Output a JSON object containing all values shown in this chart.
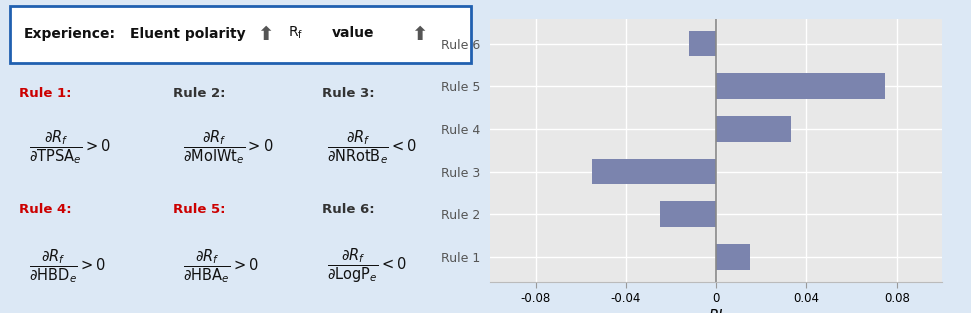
{
  "bar_labels": [
    "Rule 1",
    "Rule 2",
    "Rule 3",
    "Rule 4",
    "Rule 5",
    "Rule 6"
  ],
  "bar_values": [
    0.015,
    -0.025,
    -0.055,
    0.033,
    0.075,
    -0.012
  ],
  "bar_color": "#7b84ae",
  "xlim": [
    -0.1,
    0.1
  ],
  "xticks": [
    -0.08,
    -0.04,
    0,
    0.04,
    0.08
  ],
  "xlabel": "RI",
  "left_panel_bg": "#dce8f5",
  "left_panel_border": "#2060b0",
  "chart_bg": "#e8e8e8",
  "fig_bg": "#dce8f5",
  "rule1_color": "#cc0000",
  "rule2_color": "#333333",
  "rule3_color": "#333333",
  "rule4_color": "#cc0000",
  "rule5_color": "#cc0000",
  "rule6_color": "#333333"
}
